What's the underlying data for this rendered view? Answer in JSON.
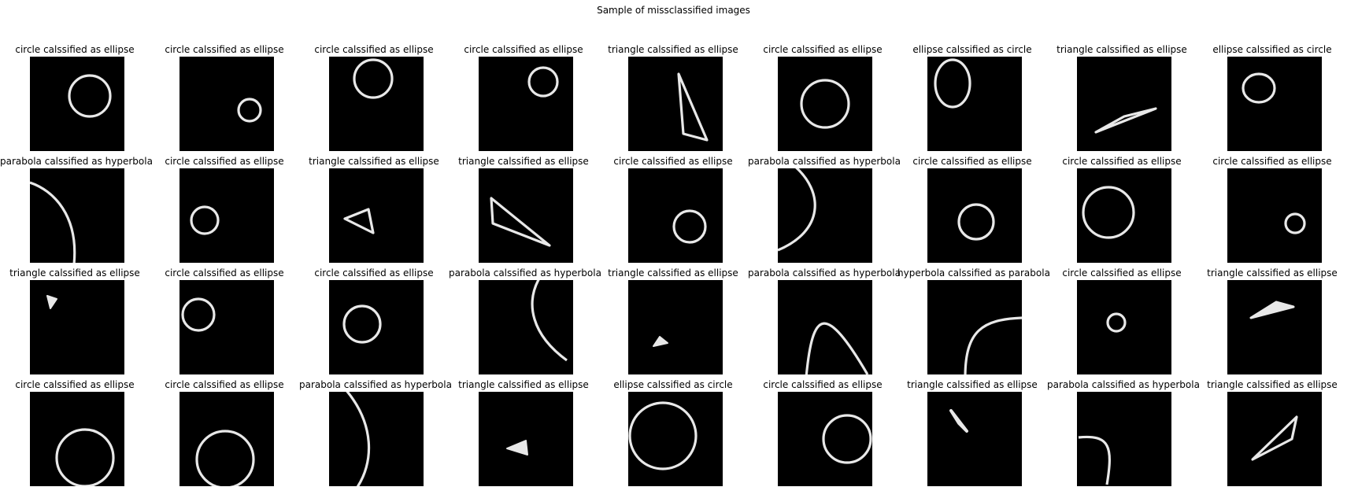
{
  "figure_title": "Sample of missclassified images",
  "grid": {
    "rows": 4,
    "cols": 9
  },
  "cells": [
    {
      "title": "circle calssified as ellipse",
      "shape": "circle"
    },
    {
      "title": "circle calssified as ellipse",
      "shape": "circle"
    },
    {
      "title": "circle calssified as ellipse",
      "shape": "circle"
    },
    {
      "title": "circle calssified as ellipse",
      "shape": "circle"
    },
    {
      "title": "triangle calssified as ellipse",
      "shape": "triangle"
    },
    {
      "title": "circle calssified as ellipse",
      "shape": "circle"
    },
    {
      "title": "ellipse calssified as circle",
      "shape": "ellipse"
    },
    {
      "title": "triangle calssified as ellipse",
      "shape": "triangle"
    },
    {
      "title": "ellipse calssified as circle",
      "shape": "ellipse"
    },
    {
      "title": "parabola calssified as hyperbola",
      "shape": "parabola"
    },
    {
      "title": "circle calssified as ellipse",
      "shape": "circle"
    },
    {
      "title": "triangle calssified as ellipse",
      "shape": "triangle"
    },
    {
      "title": "triangle calssified as ellipse",
      "shape": "triangle"
    },
    {
      "title": "circle calssified as ellipse",
      "shape": "circle"
    },
    {
      "title": "parabola calssified as hyperbola",
      "shape": "parabola"
    },
    {
      "title": "circle calssified as ellipse",
      "shape": "circle"
    },
    {
      "title": "circle calssified as ellipse",
      "shape": "circle"
    },
    {
      "title": "circle calssified as ellipse",
      "shape": "circle"
    },
    {
      "title": "triangle calssified as ellipse",
      "shape": "triangle"
    },
    {
      "title": "circle calssified as ellipse",
      "shape": "circle"
    },
    {
      "title": "circle calssified as ellipse",
      "shape": "circle"
    },
    {
      "title": "parabola calssified as hyperbola",
      "shape": "parabola"
    },
    {
      "title": "triangle calssified as ellipse",
      "shape": "triangle"
    },
    {
      "title": "parabola calssified as hyperbola",
      "shape": "parabola"
    },
    {
      "title": "hyperbola calssified as parabola",
      "shape": "hyperbola"
    },
    {
      "title": "circle calssified as ellipse",
      "shape": "circle"
    },
    {
      "title": "triangle calssified as ellipse",
      "shape": "triangle"
    },
    {
      "title": "circle calssified as ellipse",
      "shape": "circle"
    },
    {
      "title": "circle calssified as ellipse",
      "shape": "circle"
    },
    {
      "title": "parabola calssified as hyperbola",
      "shape": "parabola"
    },
    {
      "title": "triangle calssified as ellipse",
      "shape": "triangle"
    },
    {
      "title": "ellipse calssified as circle",
      "shape": "ellipse"
    },
    {
      "title": "circle calssified as ellipse",
      "shape": "circle"
    },
    {
      "title": "triangle calssified as ellipse",
      "shape": "triangle"
    },
    {
      "title": "parabola calssified as hyperbola",
      "shape": "parabola"
    },
    {
      "title": "triangle calssified as ellipse",
      "shape": "triangle"
    }
  ]
}
